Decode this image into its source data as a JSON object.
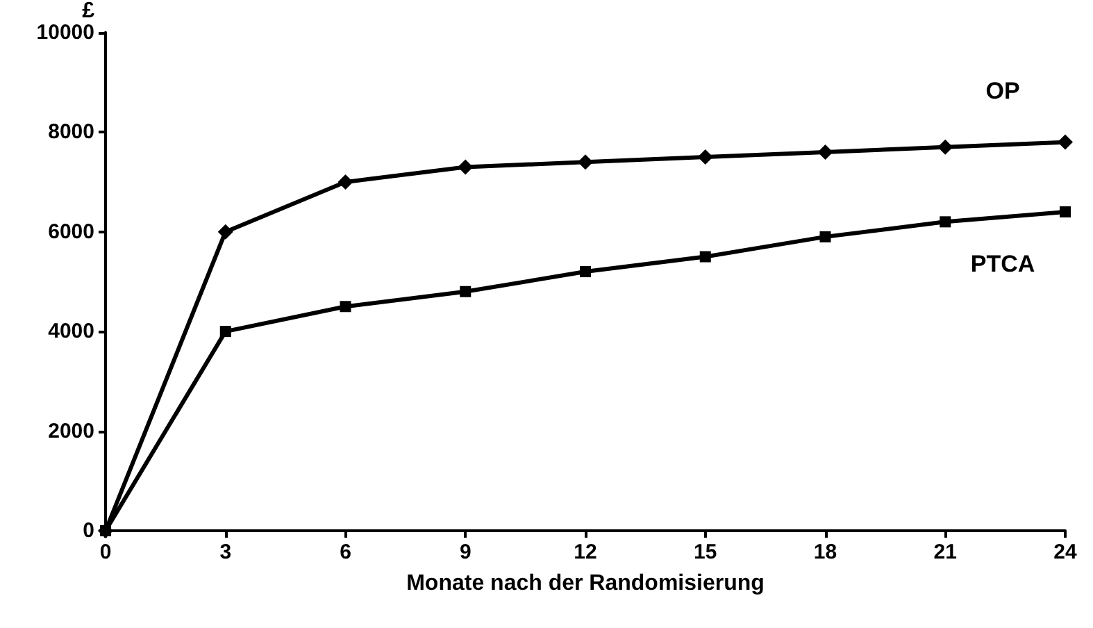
{
  "chart_data": {
    "type": "line",
    "xlabel": "Monate nach der Randomisierung",
    "ylabel": "£",
    "x": [
      0,
      3,
      6,
      9,
      12,
      15,
      18,
      21,
      24
    ],
    "xlim": [
      0,
      24
    ],
    "xticks": [
      0,
      3,
      6,
      9,
      12,
      15,
      18,
      21,
      24
    ],
    "ylim": [
      0,
      10000
    ],
    "yticks": [
      0,
      2000,
      4000,
      6000,
      8000,
      10000
    ],
    "grid": false,
    "legend": false,
    "line_style": "solid",
    "series": [
      {
        "name": "OP",
        "color": "#000000",
        "marker": "diamond",
        "values": [
          0,
          6000,
          7000,
          7300,
          7400,
          7500,
          7600,
          7700,
          7800
        ]
      },
      {
        "name": "PTCA",
        "color": "#000000",
        "marker": "square",
        "values": [
          0,
          4000,
          4500,
          4800,
          5200,
          5500,
          5900,
          6200,
          6400
        ]
      }
    ]
  }
}
